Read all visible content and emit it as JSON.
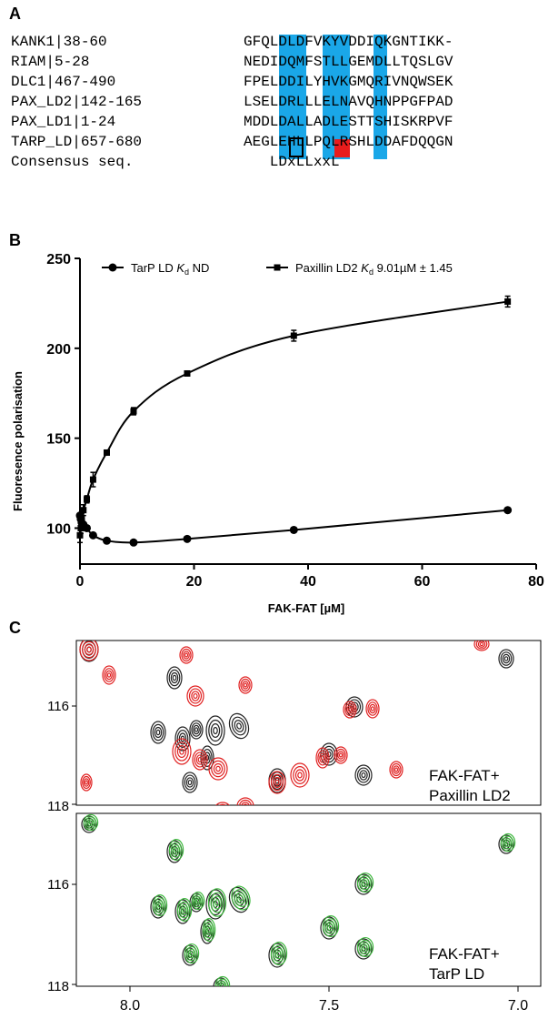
{
  "panelA": {
    "letter": "A",
    "rows": [
      {
        "label": "KANK1|38-60",
        "seq": "GFQLDLDFVKYVDDIQKGNTIKK-"
      },
      {
        "label": "RIAM|5-28",
        "seq": "NEDIDQMFSTLLGEMDLLTQSLGV"
      },
      {
        "label": "DLC1|467-490",
        "seq": "FPELDDILYHVKGMQRIVNQWSEK"
      },
      {
        "label": "PAX_LD2|142-165",
        "seq": "LSELDRLLLELNAVQHNPPGFPAD"
      },
      {
        "label": "PAX_LD1|1-24",
        "seq": "MDDLDALLADLESTTSHISKRPVF"
      },
      {
        "label": "TARP_LD|657-680",
        "seq": "AEGLEHLLPQLRSHLDDAFDQQGN"
      },
      {
        "label": "Consensus seq.",
        "seq": "   LDxLLxxL"
      }
    ],
    "highlight_color": "#1aa7e8",
    "mismatch_color": "#e81c1c"
  },
  "panelB": {
    "letter": "B",
    "chart_data": {
      "type": "scatter",
      "xlabel": "FAK-FAT [µM]",
      "ylabel": "Fluoresence polarisation",
      "xlim": [
        0,
        80
      ],
      "ylim": [
        80,
        250
      ],
      "xticks": [
        0,
        20,
        40,
        60,
        80
      ],
      "yticks": [
        100,
        150,
        200,
        250
      ],
      "legend_position": "top",
      "series": [
        {
          "name": "TarP LD",
          "legend_kd": "Kd",
          "legend_suffix": "ND",
          "marker": "circle",
          "x": [
            0,
            0.15,
            0.3,
            0.6,
            1.2,
            2.3,
            4.7,
            9.4,
            18.8,
            37.5,
            75
          ],
          "y": [
            107,
            105,
            103,
            102,
            100,
            96,
            93,
            92,
            94,
            99,
            110
          ],
          "yerr": [
            0,
            0,
            0,
            0,
            0,
            0,
            0,
            0,
            0,
            0,
            0
          ]
        },
        {
          "name": "Paxillin LD2",
          "legend_kd": "Kd",
          "legend_suffix": "9.01µM ± 1.45",
          "marker": "square",
          "x": [
            0,
            0.15,
            0.3,
            0.6,
            1.2,
            2.3,
            4.7,
            9.4,
            18.8,
            37.5,
            75
          ],
          "y": [
            96,
            100,
            105,
            110,
            116,
            127,
            142,
            165,
            186,
            207,
            226
          ],
          "yerr": [
            4,
            3,
            3,
            3,
            2,
            4,
            1,
            2,
            1,
            3,
            3
          ]
        }
      ]
    }
  },
  "panelC": {
    "letter": "C",
    "top_label_1": "FAK-FAT+",
    "top_label_2": "Paxillin LD2",
    "bottom_label_1": "FAK-FAT+",
    "bottom_label_2": "TarP LD",
    "y_ticks": [
      "116",
      "118"
    ],
    "x_ticks": [
      "8.0",
      "7.5",
      "7.0"
    ],
    "colors": {
      "reference": "#222222",
      "paxillin": "#e02020",
      "tarp": "#3db83d"
    }
  }
}
